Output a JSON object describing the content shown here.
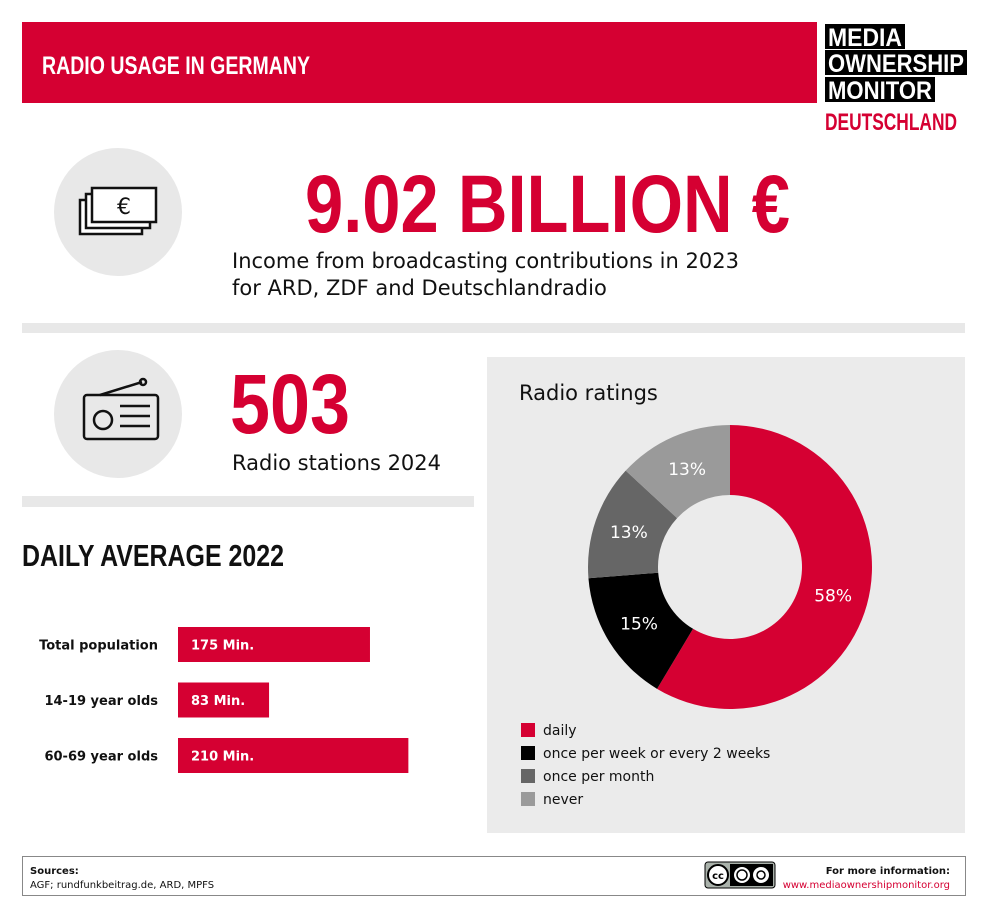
{
  "header": {
    "title": "RADIO USAGE IN GERMANY"
  },
  "logo": {
    "lines": [
      "MEDIA",
      "OWNERSHIP",
      "MONITOR"
    ],
    "country": "DEUTSCHLAND"
  },
  "income": {
    "figure": "9.02 BILLION €",
    "description": [
      "Income from broadcasting contributions in 2023",
      "for ARD, ZDF and Deutschlandradio"
    ]
  },
  "stations": {
    "figure": "503",
    "description": "Radio stations 2024"
  },
  "chart_data": [
    {
      "type": "bar",
      "title": "DAILY AVERAGE 2022",
      "categories": [
        "Total population",
        "14-19 year olds",
        "60-69 year olds"
      ],
      "values": [
        175,
        83,
        210
      ],
      "value_labels": [
        "175 Min.",
        "83 Min.",
        "210 Min."
      ],
      "color": "#d50032"
    },
    {
      "type": "pie",
      "title": "Radio ratings",
      "categories": [
        "daily",
        "once per week or every 2 weeks",
        "once per month",
        "never"
      ],
      "values": [
        58,
        15,
        13,
        13
      ],
      "value_labels": [
        "58%",
        "15%",
        "13%",
        "13%"
      ],
      "colors": [
        "#d50032",
        "#000000",
        "#666666",
        "#9a9a9a"
      ]
    }
  ],
  "footer": {
    "sources_title": "Sources:",
    "sources": "AGF; rundfunkbeitrag.de, ARD, MPFS",
    "info": "For more information:",
    "url": "www.mediaownershipmonitor.org"
  }
}
